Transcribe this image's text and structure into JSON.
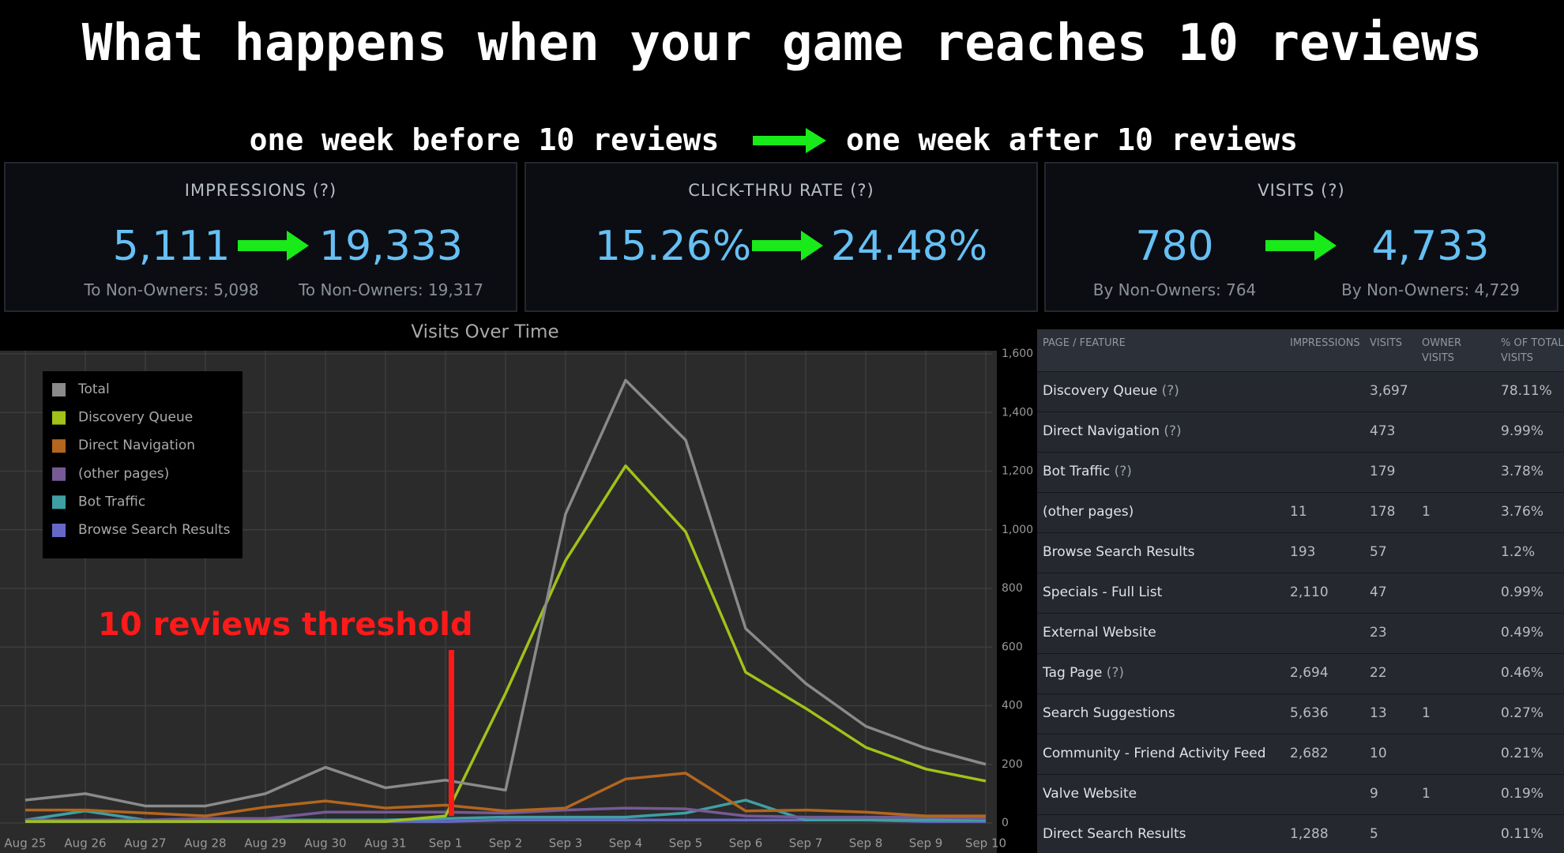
{
  "header": {
    "title": "What happens when your game reaches 10 reviews",
    "before": "one week before 10 reviews",
    "after": "one week after 10 reviews"
  },
  "panels": [
    {
      "title": "IMPRESSIONS (?)",
      "before": "5,111",
      "after": "19,333",
      "before_sub": "To Non-Owners: 5,098",
      "after_sub": "To Non-Owners: 19,317"
    },
    {
      "title": "CLICK-THRU RATE (?)",
      "before": "15.26%",
      "after": "24.48%"
    },
    {
      "title": "VISITS (?)",
      "before": "780",
      "after": "4,733",
      "before_sub": "By Non-Owners: 764",
      "after_sub": "By Non-Owners: 4,729"
    }
  ],
  "chart_data": {
    "type": "line",
    "title": "Visits Over Time",
    "annotation": "10 reviews threshold",
    "categories": [
      "Aug 25",
      "Aug 26",
      "Aug 27",
      "Aug 28",
      "Aug 29",
      "Aug 30",
      "Aug 31",
      "Sep 1",
      "Sep 2",
      "Sep 3",
      "Sep 4",
      "Sep 5",
      "Sep 6",
      "Sep 7",
      "Sep 8",
      "Sep 9",
      "Sep 10"
    ],
    "ylim": [
      0,
      1600
    ],
    "yticks": [
      0,
      200,
      400,
      600,
      800,
      {
        "value": 1000,
        "label": "1,000"
      },
      {
        "value": 1200,
        "label": "1,200"
      },
      {
        "value": 1400,
        "label": "1,400"
      },
      {
        "value": 1600,
        "label": "1,600"
      }
    ],
    "grid": true,
    "series": [
      {
        "name": "Total",
        "color": "#8a8a8a",
        "values": [
          78,
          100,
          58,
          58,
          100,
          190,
          120,
          146,
          112,
          1054,
          1510,
          1306,
          663,
          476,
          330,
          255,
          200
        ]
      },
      {
        "name": "Discovery Queue",
        "color": "#a1c219",
        "values": [
          5,
          5,
          5,
          5,
          5,
          5,
          5,
          24,
          442,
          895,
          1218,
          993,
          514,
          391,
          258,
          184,
          143
        ]
      },
      {
        "name": "Direct Navigation",
        "color": "#b3661e",
        "values": [
          44,
          44,
          34,
          24,
          54,
          75,
          51,
          61,
          41,
          51,
          150,
          170,
          41,
          44,
          37,
          24,
          24
        ]
      },
      {
        "name": "(other pages)",
        "color": "#765a96",
        "values": [
          10,
          10,
          10,
          15,
          15,
          37,
          37,
          37,
          34,
          44,
          51,
          48,
          24,
          20,
          20,
          20,
          15
        ]
      },
      {
        "name": "Bot Traffic",
        "color": "#3f9fa3",
        "values": [
          10,
          41,
          10,
          10,
          10,
          10,
          10,
          15,
          20,
          20,
          20,
          34,
          78,
          10,
          10,
          10,
          10
        ]
      },
      {
        "name": "Browse Search Results",
        "color": "#6668c8",
        "values": [
          5,
          5,
          5,
          5,
          5,
          5,
          5,
          5,
          10,
          10,
          10,
          10,
          10,
          10,
          10,
          5,
          5
        ]
      }
    ]
  },
  "table": {
    "columns": [
      "PAGE / FEATURE",
      "IMPRESSIONS",
      "VISITS",
      "OWNER VISITS",
      "% OF TOTAL VISITS"
    ],
    "rows": [
      {
        "page": "Discovery Queue",
        "hint": "(?)",
        "visits": "3,697",
        "percent": "78.11%"
      },
      {
        "page": "Direct Navigation",
        "hint": "(?)",
        "visits": "473",
        "percent": "9.99%"
      },
      {
        "page": "Bot Traffic",
        "hint": "(?)",
        "visits": "179",
        "percent": "3.78%"
      },
      {
        "page": "(other pages)",
        "impressions": "11",
        "visits": "178",
        "owner_visits": "1",
        "percent": "3.76%"
      },
      {
        "page": "Browse Search Results",
        "impressions": "193",
        "visits": "57",
        "percent": "1.2%"
      },
      {
        "page": "Specials - Full List",
        "impressions": "2,110",
        "visits": "47",
        "percent": "0.99%"
      },
      {
        "page": "External Website",
        "visits": "23",
        "percent": "0.49%"
      },
      {
        "page": "Tag Page",
        "hint": "(?)",
        "impressions": "2,694",
        "visits": "22",
        "percent": "0.46%"
      },
      {
        "page": "Search Suggestions",
        "impressions": "5,636",
        "visits": "13",
        "owner_visits": "1",
        "percent": "0.27%"
      },
      {
        "page": "Community - Friend Activity Feed",
        "impressions": "2,682",
        "visits": "10",
        "percent": "0.21%"
      },
      {
        "page": "Valve Website",
        "visits": "9",
        "owner_visits": "1",
        "percent": "0.19%"
      },
      {
        "page": "Direct Search Results",
        "impressions": "1,288",
        "visits": "5",
        "percent": "0.11%"
      }
    ]
  }
}
